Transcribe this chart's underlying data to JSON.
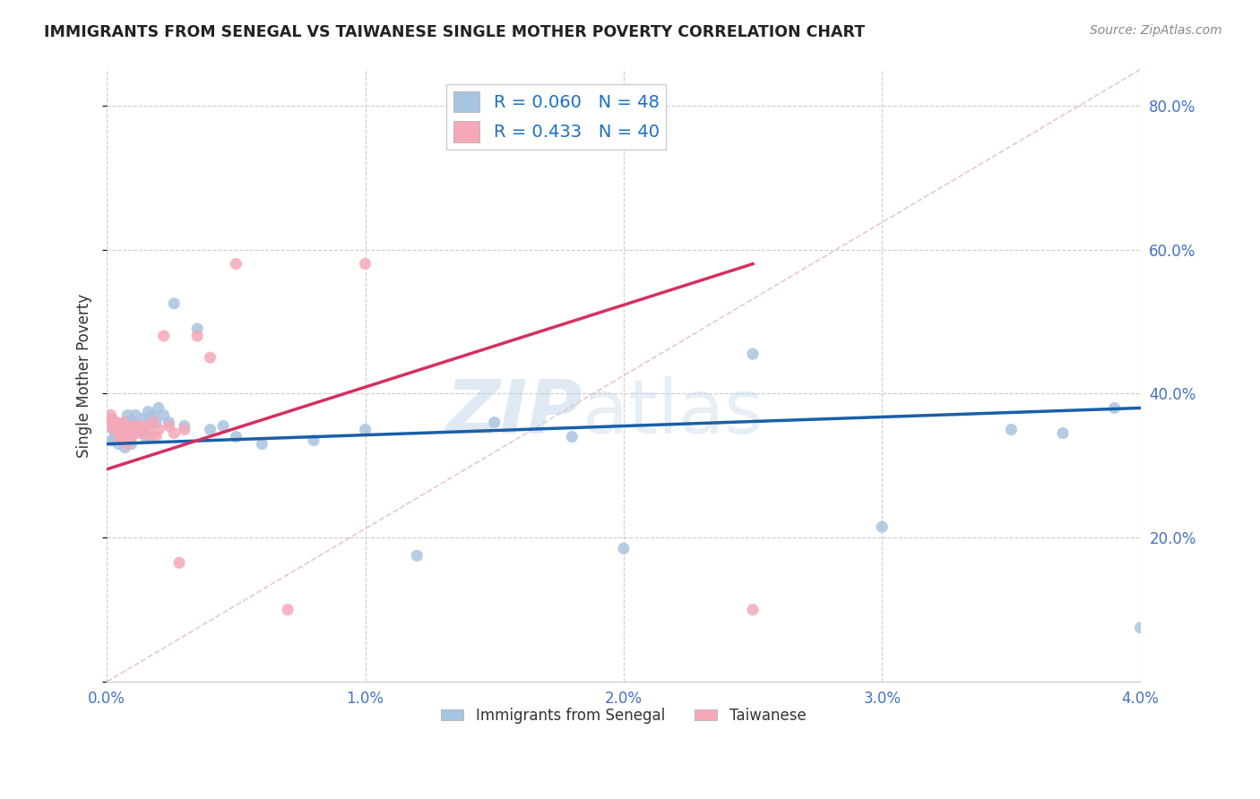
{
  "title": "IMMIGRANTS FROM SENEGAL VS TAIWANESE SINGLE MOTHER POVERTY CORRELATION CHART",
  "source": "Source: ZipAtlas.com",
  "ylabel": "Single Mother Poverty",
  "xlim": [
    0.0,
    0.04
  ],
  "ylim": [
    0.0,
    0.85
  ],
  "x_ticks": [
    0.0,
    0.01,
    0.02,
    0.03,
    0.04
  ],
  "x_tick_labels": [
    "0.0%",
    "1.0%",
    "2.0%",
    "3.0%",
    "4.0%"
  ],
  "y_ticks": [
    0.0,
    0.2,
    0.4,
    0.6,
    0.8
  ],
  "y_tick_labels": [
    "",
    "20.0%",
    "40.0%",
    "60.0%",
    "80.0%"
  ],
  "legend_label1": "Immigrants from Senegal",
  "legend_label2": "Taiwanese",
  "r1": 0.06,
  "n1": 48,
  "r2": 0.433,
  "n2": 40,
  "color1": "#a8c4e0",
  "color2": "#f4a8b8",
  "line_color1": "#1a5fa8",
  "line_color2": "#d43060",
  "diagonal_color": "#e0b0b8",
  "background_color": "#ffffff",
  "watermark_zip": "ZIP",
  "watermark_atlas": "atlas",
  "senegal_x": [
    0.0002,
    0.00025,
    0.0003,
    0.00035,
    0.0004,
    0.00045,
    0.0005,
    0.00055,
    0.0006,
    0.00065,
    0.0007,
    0.00075,
    0.0008,
    0.00085,
    0.0009,
    0.00095,
    0.001,
    0.0011,
    0.0012,
    0.0013,
    0.0014,
    0.0015,
    0.0016,
    0.0017,
    0.0018,
    0.0019,
    0.002,
    0.0022,
    0.0024,
    0.0026,
    0.003,
    0.0035,
    0.004,
    0.0045,
    0.005,
    0.006,
    0.008,
    0.01,
    0.012,
    0.015,
    0.018,
    0.02,
    0.025,
    0.03,
    0.035,
    0.037,
    0.039,
    0.04
  ],
  "senegal_y": [
    0.335,
    0.35,
    0.34,
    0.36,
    0.345,
    0.33,
    0.355,
    0.34,
    0.35,
    0.345,
    0.325,
    0.36,
    0.37,
    0.355,
    0.34,
    0.33,
    0.36,
    0.37,
    0.355,
    0.35,
    0.365,
    0.34,
    0.375,
    0.365,
    0.37,
    0.36,
    0.38,
    0.37,
    0.36,
    0.525,
    0.355,
    0.49,
    0.35,
    0.355,
    0.34,
    0.33,
    0.335,
    0.35,
    0.175,
    0.36,
    0.34,
    0.185,
    0.455,
    0.215,
    0.35,
    0.345,
    0.38,
    0.075
  ],
  "taiwanese_x": [
    0.0001,
    0.00015,
    0.0002,
    0.00025,
    0.0003,
    0.00035,
    0.0004,
    0.00045,
    0.0005,
    0.00055,
    0.0006,
    0.00065,
    0.0007,
    0.00075,
    0.0008,
    0.00085,
    0.0009,
    0.00095,
    0.001,
    0.0011,
    0.0012,
    0.0013,
    0.0014,
    0.0015,
    0.0016,
    0.0017,
    0.0018,
    0.0019,
    0.002,
    0.0022,
    0.0024,
    0.0026,
    0.0028,
    0.003,
    0.0035,
    0.004,
    0.005,
    0.007,
    0.01,
    0.025
  ],
  "taiwanese_y": [
    0.355,
    0.37,
    0.365,
    0.36,
    0.35,
    0.36,
    0.355,
    0.345,
    0.34,
    0.335,
    0.355,
    0.36,
    0.35,
    0.34,
    0.33,
    0.345,
    0.35,
    0.34,
    0.355,
    0.35,
    0.345,
    0.355,
    0.345,
    0.355,
    0.35,
    0.34,
    0.36,
    0.34,
    0.35,
    0.48,
    0.355,
    0.345,
    0.165,
    0.35,
    0.48,
    0.45,
    0.58,
    0.1,
    0.58,
    0.1
  ]
}
